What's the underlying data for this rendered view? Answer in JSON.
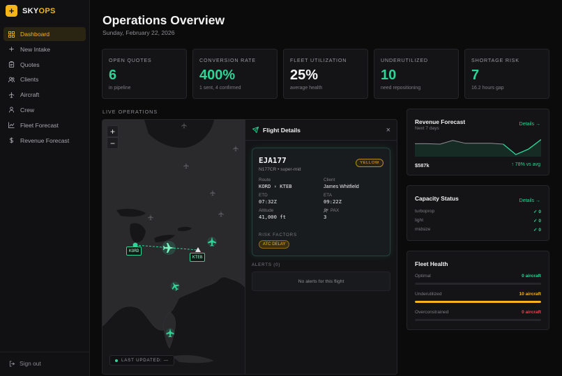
{
  "brand": {
    "logo_glyph": "+",
    "name_part1": "SKY",
    "name_part2": "OPS",
    "accent_color": "#f5b519"
  },
  "sidebar": {
    "items": [
      {
        "label": "Dashboard",
        "icon": "grid-icon",
        "active": true
      },
      {
        "label": "New Intake",
        "icon": "plus-icon"
      },
      {
        "label": "Quotes",
        "icon": "clipboard-icon"
      },
      {
        "label": "Clients",
        "icon": "users-icon"
      },
      {
        "label": "Aircraft",
        "icon": "plane-icon"
      },
      {
        "label": "Crew",
        "icon": "person-icon"
      },
      {
        "label": "Fleet Forecast",
        "icon": "chart-icon"
      },
      {
        "label": "Revenue Forecast",
        "icon": "dollar-icon"
      }
    ],
    "signout": "Sign out"
  },
  "header": {
    "title": "Operations Overview",
    "date": "Sunday, February 22, 2026"
  },
  "kpis": [
    {
      "label": "OPEN QUOTES",
      "value": "6",
      "sub": "in pipeline",
      "color": "green"
    },
    {
      "label": "CONVERSION RATE",
      "value": "400%",
      "sub": "1 sent, 4 confirmed",
      "color": "green"
    },
    {
      "label": "FLEET UTILIZATION",
      "value": "25%",
      "sub": "average health",
      "color": "white"
    },
    {
      "label": "UNDERUTILIZED",
      "value": "10",
      "sub": "need repositioning",
      "color": "green"
    },
    {
      "label": "SHORTAGE RISK",
      "value": "7",
      "sub": "16.2 hours gap",
      "color": "green"
    }
  ],
  "live_ops": {
    "section_label": "LIVE OPERATIONS",
    "zoom_in": "+",
    "zoom_out": "−",
    "origin_tag": "KORD",
    "dest_tag": "KTEB",
    "last_updated": "LAST UPDATED: —"
  },
  "flight_details": {
    "title": "Flight Details",
    "close": "×",
    "callsign": "EJA177",
    "subtitle": "N177CR • super-mid",
    "status_badge": "YELLOW",
    "route_label": "Route",
    "route_value": "KORD › KTEB",
    "client_label": "Client",
    "client_value": "James Whitfield",
    "etd_label": "ETD",
    "etd_value": "07:32Z",
    "eta_label": "ETA",
    "eta_value": "09:22Z",
    "altitude_label": "Altitude",
    "altitude_value": "41,000 ft",
    "pax_label": "PAX",
    "pax_value": "3",
    "risk_label": "RISK FACTORS",
    "risk_tag": "ATC DELAY",
    "alerts_label": "ALERTS (0)",
    "alerts_empty": "No alerts for this flight"
  },
  "revenue_forecast": {
    "title": "Revenue Forecast",
    "subtitle": "Next 7 days",
    "link": "Details →",
    "amount": "$587k",
    "delta": "↑ 78% vs avg",
    "sparkline": [
      0.62,
      0.62,
      0.6,
      0.78,
      0.64,
      0.64,
      0.64,
      0.6,
      0.1,
      0.36,
      0.82
    ]
  },
  "capacity_status": {
    "title": "Capacity Status",
    "link": "Details →",
    "rows": [
      {
        "label": "turboprop",
        "value": "✓ 0"
      },
      {
        "label": "light",
        "value": "✓ 0"
      },
      {
        "label": "midsize",
        "value": "✓ 0"
      }
    ]
  },
  "fleet_health": {
    "title": "Fleet Health",
    "rows": [
      {
        "label": "Optimal",
        "value": "0 aircraft",
        "color": "#2ed596",
        "fraction": 0
      },
      {
        "label": "Underutilized",
        "value": "10 aircraft",
        "color": "#f5b519",
        "fraction": 1
      },
      {
        "label": "Overconstrained",
        "value": "0 aircraft",
        "color": "#e5484d",
        "fraction": 0
      }
    ]
  }
}
